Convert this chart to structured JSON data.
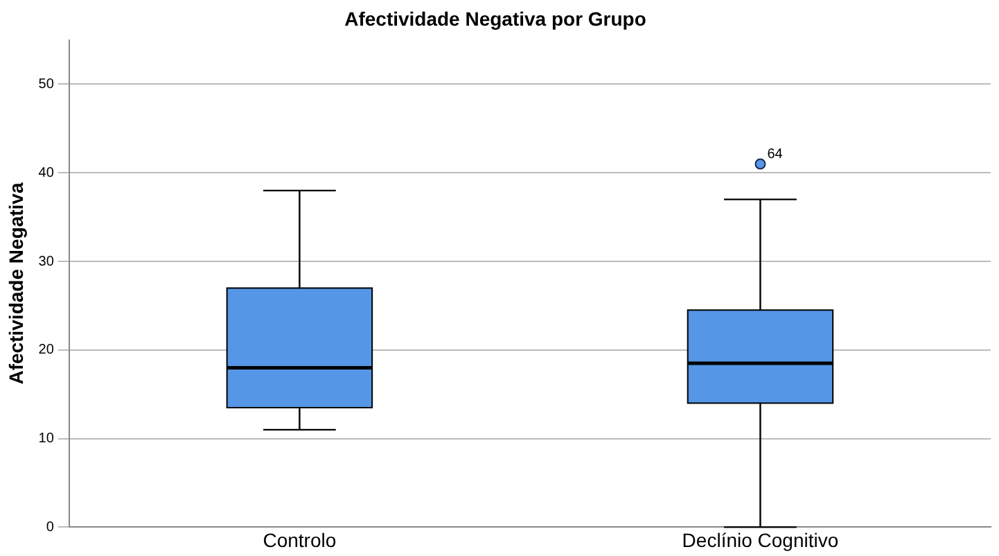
{
  "chart_data": {
    "type": "box",
    "title": "Afectividade Negativa por Grupo",
    "ylabel": "Afectividade Negativa",
    "categories": [
      "Controlo",
      "Declínio Cognitivo"
    ],
    "boxes": [
      {
        "low": 11,
        "q1": 13.5,
        "median": 18,
        "q3": 27,
        "high": 38
      },
      {
        "low": 0,
        "q1": 14,
        "median": 18.5,
        "q3": 24.5,
        "high": 37,
        "outliers": [
          41
        ]
      }
    ],
    "color": "#5596e6",
    "ylim": [
      0,
      55
    ],
    "yticks": [
      0,
      10,
      20,
      30,
      40,
      50
    ],
    "grid": "y",
    "legend": false,
    "annotations": [
      "64"
    ]
  }
}
